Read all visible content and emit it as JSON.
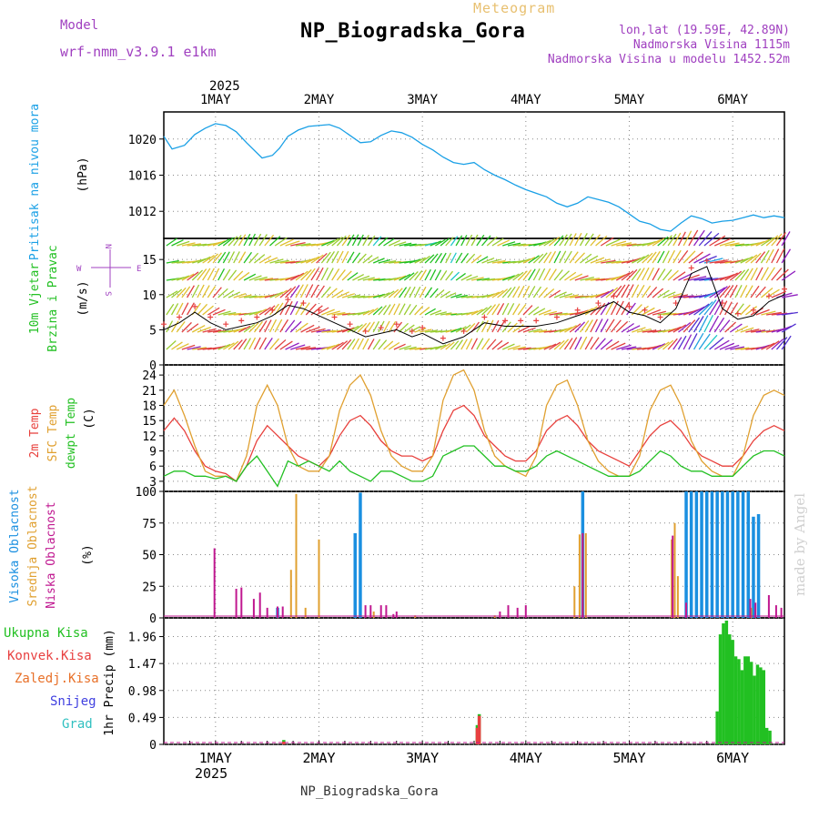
{
  "header": {
    "title": "NP_Biogradska_Gora",
    "subtitle": "Meteogram",
    "model_label": "Model",
    "model_value": "wrf-nmm_v3.9.1 e1km",
    "lonlat": "lon,lat (19.59E, 42.89N)",
    "elevation": "Nadmorska Visina 1115m",
    "model_elevation": "Nadmorska Visina u modelu 1452.52m"
  },
  "footer": {
    "station": "NP_Biogradska_Gora"
  },
  "watermark": "made by Angel",
  "time_axis": {
    "year": "2025",
    "day_labels": [
      "1MAY",
      "2MAY",
      "3MAY",
      "4MAY",
      "5MAY",
      "6MAY"
    ],
    "range_days": [
      -0.5,
      5.5
    ]
  },
  "colors": {
    "pressure": "#1aa0e6",
    "temp2m": "#e8403c",
    "sfc_temp": "#e0a030",
    "dewpt": "#22c022",
    "high_cloud": "#1a8fe0",
    "mid_cloud": "#e0a030",
    "low_cloud": "#c01890",
    "total_precip": "#22c022",
    "conv_precip": "#e84040",
    "frozen_precip": "#e87028",
    "snow": "#4040e0",
    "graupel": "#30c0c0"
  },
  "panel_labels": {
    "pressure": {
      "name": "Pritisak na nivou mora",
      "unit": "(hPa)"
    },
    "wind": {
      "name1": "10m Vjetar",
      "name2": "Brzina i Pravac",
      "unit": "(m/s)",
      "compass_n": "N",
      "compass_s": "S",
      "compass_w": "W",
      "compass_e": "E"
    },
    "temp": {
      "name1": "2m Temp",
      "name2": "SFC Temp",
      "name3": "dewpt Temp",
      "unit": "(C)"
    },
    "cloud": {
      "name1": "Visoka Oblacnost",
      "name2": "Srednja Oblacnost",
      "name3": "Niska Oblacnost",
      "unit": "(%)"
    },
    "precip": {
      "total": "Ukupna Kisa",
      "conv": "Konvek.Kisa",
      "frozen": "Zaledj.Kisa",
      "snow": "Snijeg",
      "graupel": "Grad",
      "unit": "1hr Precip (mm)"
    }
  },
  "chart_data": [
    {
      "type": "line",
      "panel": "pressure",
      "x_unit": "days from 1 May 00 UTC",
      "ylim": [
        1009,
        1023
      ],
      "yticks": [
        "1012",
        "1016",
        "1020"
      ],
      "series": [
        {
          "name": "Pritisak na nivou mora",
          "x": [
            -0.5,
            -0.42,
            -0.3,
            -0.2,
            -0.1,
            0.0,
            0.1,
            0.2,
            0.3,
            0.45,
            0.55,
            0.62,
            0.7,
            0.8,
            0.9,
            1.0,
            1.1,
            1.2,
            1.3,
            1.4,
            1.5,
            1.6,
            1.7,
            1.8,
            1.9,
            2.0,
            2.1,
            2.2,
            2.3,
            2.4,
            2.5,
            2.6,
            2.7,
            2.8,
            2.9,
            3.0,
            3.1,
            3.2,
            3.3,
            3.4,
            3.5,
            3.6,
            3.7,
            3.8,
            3.9,
            4.0,
            4.1,
            4.2,
            4.3,
            4.4,
            4.5,
            4.6,
            4.7,
            4.8,
            4.9,
            5.0,
            5.1,
            5.2,
            5.3,
            5.4,
            5.5
          ],
          "y": [
            1020.3,
            1018.9,
            1019.3,
            1020.5,
            1021.2,
            1021.7,
            1021.5,
            1020.8,
            1019.6,
            1017.9,
            1018.2,
            1019.0,
            1020.3,
            1021.0,
            1021.4,
            1021.5,
            1021.6,
            1021.2,
            1020.4,
            1019.6,
            1019.7,
            1020.4,
            1020.9,
            1020.7,
            1020.2,
            1019.4,
            1018.8,
            1018.0,
            1017.4,
            1017.2,
            1017.4,
            1016.6,
            1016.0,
            1015.5,
            1014.9,
            1014.4,
            1014.0,
            1013.6,
            1012.9,
            1012.5,
            1012.9,
            1013.6,
            1013.3,
            1013.0,
            1012.5,
            1011.7,
            1010.9,
            1010.6,
            1010.0,
            1009.8,
            1010.7,
            1011.5,
            1011.2,
            1010.7,
            1010.9,
            1011.0,
            1011.3,
            1011.6,
            1011.3,
            1011.5,
            1011.3
          ]
        }
      ]
    },
    {
      "type": "line",
      "panel": "wind",
      "x_unit": "days from 1 May 00 UTC",
      "ylim": [
        0,
        18
      ],
      "yticks": [
        "0",
        "5",
        "10",
        "15"
      ],
      "series": [
        {
          "name": "10m Vjetar",
          "x": [
            -0.5,
            -0.35,
            -0.2,
            -0.05,
            0.1,
            0.25,
            0.4,
            0.55,
            0.7,
            0.85,
            1.0,
            1.15,
            1.3,
            1.45,
            1.6,
            1.75,
            1.9,
            2.0,
            2.2,
            2.4,
            2.6,
            2.8,
            2.95,
            3.1,
            3.3,
            3.5,
            3.7,
            3.85,
            4.0,
            4.15,
            4.3,
            4.45,
            4.6,
            4.75,
            4.9,
            5.05,
            5.2,
            5.35,
            5.5
          ],
          "y": [
            5,
            6,
            7.5,
            6,
            5,
            5.5,
            6,
            7,
            8.5,
            8,
            7,
            6,
            5,
            4,
            4.5,
            5,
            4,
            4.5,
            3,
            4,
            6,
            5.5,
            5.5,
            5.5,
            6,
            7,
            8,
            9,
            7.5,
            7,
            6,
            8,
            13,
            14,
            8,
            6.5,
            7,
            9,
            10
          ]
        }
      ]
    },
    {
      "type": "line",
      "panel": "temp",
      "x_unit": "days from 1 May 00 UTC",
      "ylim": [
        1,
        26
      ],
      "yticks": [
        "3",
        "6",
        "9",
        "12",
        "15",
        "18",
        "21",
        "24"
      ],
      "series": [
        {
          "name": "2m Temp",
          "x": [
            -0.5,
            -0.4,
            -0.3,
            -0.2,
            -0.1,
            0.0,
            0.1,
            0.2,
            0.3,
            0.4,
            0.5,
            0.6,
            0.7,
            0.8,
            0.9,
            1.0,
            1.1,
            1.2,
            1.3,
            1.4,
            1.5,
            1.6,
            1.7,
            1.8,
            1.9,
            2.0,
            2.1,
            2.2,
            2.3,
            2.4,
            2.5,
            2.6,
            2.7,
            2.8,
            2.9,
            3.0,
            3.1,
            3.2,
            3.3,
            3.4,
            3.5,
            3.6,
            3.7,
            3.8,
            3.9,
            4.0,
            4.1,
            4.2,
            4.3,
            4.4,
            4.5,
            4.6,
            4.7,
            4.8,
            4.9,
            5.0,
            5.1,
            5.2,
            5.3,
            5.4,
            5.5
          ],
          "y": [
            13,
            15.5,
            13,
            9,
            6,
            5,
            4.5,
            3,
            6,
            11,
            14,
            12,
            10,
            8,
            7,
            6,
            8,
            12,
            15,
            16,
            14,
            11,
            9,
            8,
            8,
            7,
            8,
            13,
            17,
            18,
            16,
            12,
            10,
            8,
            7,
            7,
            9,
            13,
            15,
            16,
            14,
            11,
            9,
            8,
            7,
            6,
            9,
            12,
            14,
            15,
            13,
            10,
            8,
            7,
            6,
            6,
            8,
            11,
            13,
            14,
            13
          ]
        },
        {
          "name": "SFC Temp",
          "x": [
            -0.5,
            -0.4,
            -0.3,
            -0.2,
            -0.1,
            0.0,
            0.1,
            0.2,
            0.3,
            0.4,
            0.5,
            0.6,
            0.7,
            0.8,
            0.9,
            1.0,
            1.1,
            1.2,
            1.3,
            1.4,
            1.5,
            1.6,
            1.7,
            1.8,
            1.9,
            2.0,
            2.1,
            2.2,
            2.3,
            2.4,
            2.5,
            2.6,
            2.7,
            2.8,
            2.9,
            3.0,
            3.1,
            3.2,
            3.3,
            3.4,
            3.5,
            3.6,
            3.7,
            3.8,
            3.9,
            4.0,
            4.1,
            4.2,
            4.3,
            4.4,
            4.5,
            4.6,
            4.7,
            4.8,
            4.9,
            5.0,
            5.1,
            5.2,
            5.3,
            5.4,
            5.5
          ],
          "y": [
            18,
            21,
            16,
            10,
            5,
            4,
            4,
            3,
            8,
            18,
            22,
            18,
            10,
            6,
            5,
            5,
            8,
            17,
            22,
            24,
            20,
            13,
            8,
            6,
            5,
            5,
            8,
            19,
            24,
            25,
            21,
            13,
            8,
            6,
            5,
            4,
            8,
            18,
            22,
            23,
            18,
            11,
            7,
            5,
            4,
            4,
            8,
            17,
            21,
            22,
            18,
            11,
            7,
            5,
            4,
            4,
            8,
            16,
            20,
            21,
            20
          ]
        },
        {
          "name": "dewpt Temp",
          "x": [
            -0.5,
            -0.4,
            -0.3,
            -0.2,
            -0.1,
            0.0,
            0.1,
            0.2,
            0.3,
            0.4,
            0.5,
            0.6,
            0.7,
            0.8,
            0.9,
            1.0,
            1.1,
            1.2,
            1.3,
            1.4,
            1.5,
            1.6,
            1.7,
            1.8,
            1.9,
            2.0,
            2.1,
            2.2,
            2.3,
            2.4,
            2.5,
            2.6,
            2.7,
            2.8,
            2.9,
            3.0,
            3.1,
            3.2,
            3.3,
            3.4,
            3.5,
            3.6,
            3.7,
            3.8,
            3.9,
            4.0,
            4.1,
            4.2,
            4.3,
            4.4,
            4.5,
            4.6,
            4.7,
            4.8,
            4.9,
            5.0,
            5.1,
            5.2,
            5.3,
            5.4,
            5.5
          ],
          "y": [
            4,
            5,
            5,
            4,
            4,
            3.5,
            4,
            3,
            6,
            8,
            5,
            2,
            7,
            6,
            7,
            6,
            5,
            7,
            5,
            4,
            3,
            5,
            5,
            4,
            3,
            3,
            4,
            8,
            9,
            10,
            10,
            8,
            6,
            6,
            5,
            5,
            6,
            8,
            9,
            8,
            7,
            6,
            5,
            4,
            4,
            4,
            5,
            7,
            9,
            8,
            6,
            5,
            5,
            4,
            4,
            4,
            6,
            8,
            9,
            9,
            8
          ]
        }
      ]
    },
    {
      "type": "bar",
      "panel": "cloud",
      "x_unit": "days from 1 May 00 UTC",
      "ylim": [
        0,
        100
      ],
      "yticks": [
        "0",
        "25",
        "50",
        "75",
        "100"
      ],
      "series": [
        {
          "name": "Visoka Oblacnost",
          "x": [
            -0.03,
            0.6,
            1.35,
            1.4,
            3.55,
            4.55,
            4.6,
            4.65,
            4.7,
            4.75,
            4.8,
            4.85,
            4.9,
            4.95,
            5.0,
            5.05,
            5.1,
            5.15,
            5.2,
            5.25,
            5.3,
            5.35,
            5.4,
            5.45,
            5.5
          ],
          "values": [
            0,
            8,
            67,
            99,
            100,
            100,
            100,
            100,
            100,
            100,
            100,
            100,
            100,
            100,
            100,
            100,
            100,
            100,
            80,
            82,
            0,
            0,
            0,
            0,
            0
          ]
        },
        {
          "name": "Srednja Oblacnost",
          "x": [
            0.73,
            0.78,
            0.87,
            1.0,
            1.53,
            1.93,
            2.7,
            3.47,
            3.52,
            3.55,
            3.58,
            4.41,
            4.44,
            4.47,
            5.18
          ],
          "values": [
            38,
            98,
            8,
            62,
            5,
            2,
            2,
            25,
            66,
            67,
            67,
            62,
            75,
            33,
            8
          ]
        },
        {
          "name": "Niska Oblacnost",
          "x": [
            -0.01,
            0.2,
            0.25,
            0.37,
            0.43,
            0.5,
            0.6,
            0.65,
            1.45,
            1.5,
            1.6,
            1.65,
            1.72,
            1.75,
            2.75,
            2.83,
            2.92,
            3.0,
            3.55,
            4.42,
            4.55,
            5.17,
            5.22,
            5.35,
            5.42,
            5.47
          ],
          "values": [
            55,
            23,
            24,
            15,
            20,
            8,
            9,
            9,
            10,
            10,
            10,
            10,
            3,
            5,
            5,
            10,
            8,
            10,
            67,
            65,
            12,
            15,
            12,
            18,
            10,
            8
          ]
        }
      ]
    },
    {
      "type": "bar",
      "panel": "precip",
      "x_unit": "days from 1 May 00 UTC",
      "ylim": [
        0,
        2.3
      ],
      "yticks": [
        "0",
        "0.49",
        "0.98",
        "1.47",
        "1.96"
      ],
      "series": [
        {
          "name": "Ukupna Kisa",
          "x": [
            0.66,
            2.53,
            2.55,
            4.85,
            4.88,
            4.91,
            4.94,
            4.97,
            5.0,
            5.03,
            5.06,
            5.09,
            5.12,
            5.15,
            5.18,
            5.21,
            5.24,
            5.27,
            5.3,
            5.33,
            5.36
          ],
          "values": [
            0.08,
            0.35,
            0.55,
            0.6,
            2.0,
            2.2,
            2.25,
            2.0,
            1.9,
            1.6,
            1.55,
            1.35,
            1.6,
            1.6,
            1.5,
            1.25,
            1.45,
            1.4,
            1.35,
            0.3,
            0.25
          ]
        },
        {
          "name": "Konvek.Kisa",
          "x": [
            0.66,
            2.53,
            2.55
          ],
          "values": [
            0.05,
            0.3,
            0.52
          ]
        }
      ]
    }
  ]
}
